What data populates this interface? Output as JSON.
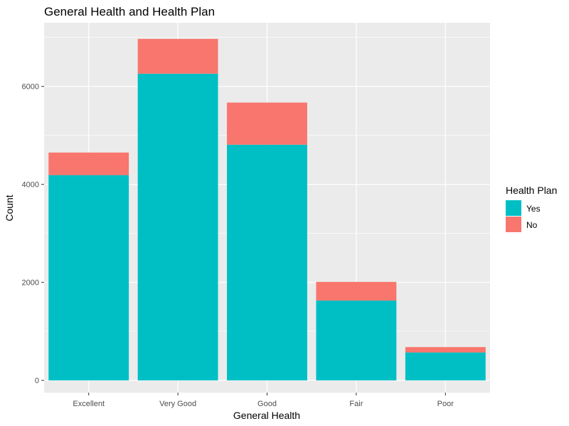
{
  "chart_data": {
    "type": "bar",
    "stacked": true,
    "title": "General Health and Health Plan",
    "xlabel": "General Health",
    "ylabel": "Count",
    "categories": [
      "Excellent",
      "Very Good",
      "Good",
      "Fair",
      "Poor"
    ],
    "series": [
      {
        "name": "Yes",
        "color": "#00BFC4",
        "values": [
          4190,
          6260,
          4810,
          1630,
          570
        ]
      },
      {
        "name": "No",
        "color": "#F8766D",
        "values": [
          460,
          710,
          860,
          380,
          110
        ]
      }
    ],
    "ylim": [
      -250,
      7300
    ],
    "yticks": [
      0,
      2000,
      4000,
      6000
    ],
    "ytick_labels": [
      "0",
      "2000",
      "4000",
      "6000"
    ],
    "legend": {
      "title": "Health Plan",
      "position": "right",
      "labels": [
        "Yes",
        "No"
      ]
    },
    "grid": true,
    "panel_background": "#EBEBEB",
    "grid_color": "#FFFFFF"
  }
}
